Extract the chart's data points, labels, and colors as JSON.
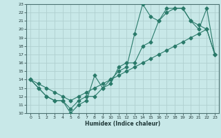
{
  "title": "",
  "xlabel": "Humidex (Indice chaleur)",
  "bg_color": "#c8e8e8",
  "line_color": "#2a7a6a",
  "grid_color": "#b0d0d0",
  "xlim": [
    -0.5,
    23.5
  ],
  "ylim": [
    10,
    23
  ],
  "xticks": [
    0,
    1,
    2,
    3,
    4,
    5,
    6,
    7,
    8,
    9,
    10,
    11,
    12,
    13,
    14,
    15,
    16,
    17,
    18,
    19,
    20,
    21,
    22,
    23
  ],
  "yticks": [
    10,
    11,
    12,
    13,
    14,
    15,
    16,
    17,
    18,
    19,
    20,
    21,
    22,
    23
  ],
  "line1_x": [
    0,
    1,
    2,
    3,
    4,
    5,
    6,
    7,
    8,
    9,
    10,
    11,
    12,
    13,
    14,
    15,
    16,
    17,
    18,
    19,
    20,
    21,
    22,
    23
  ],
  "line1_y": [
    14,
    13,
    12,
    11.5,
    11.5,
    10,
    11,
    11.5,
    14.5,
    13,
    13.5,
    15.5,
    16,
    16,
    18,
    18.5,
    21,
    22,
    22.5,
    22.5,
    21,
    20,
    22.5,
    17
  ],
  "line2_x": [
    0,
    1,
    2,
    3,
    4,
    5,
    6,
    7,
    8,
    9,
    10,
    11,
    12,
    13,
    14,
    15,
    16,
    17,
    18,
    19,
    20,
    21,
    22,
    23
  ],
  "line2_y": [
    14,
    13,
    12,
    11.5,
    11.5,
    10.5,
    11.5,
    12,
    12,
    13,
    14,
    15,
    15.5,
    19.5,
    23,
    21.5,
    21,
    22.5,
    22.5,
    22.5,
    21,
    20.5,
    20,
    17
  ],
  "line3_x": [
    0,
    1,
    2,
    3,
    4,
    5,
    6,
    7,
    8,
    9,
    10,
    11,
    12,
    13,
    14,
    15,
    16,
    17,
    18,
    19,
    20,
    21,
    22,
    23
  ],
  "line3_y": [
    14,
    13.5,
    13,
    12.5,
    12,
    11.5,
    12,
    12.5,
    13,
    13.5,
    14,
    14.5,
    15,
    15.5,
    16,
    16.5,
    17,
    17.5,
    18,
    18.5,
    19,
    19.5,
    20,
    17
  ]
}
